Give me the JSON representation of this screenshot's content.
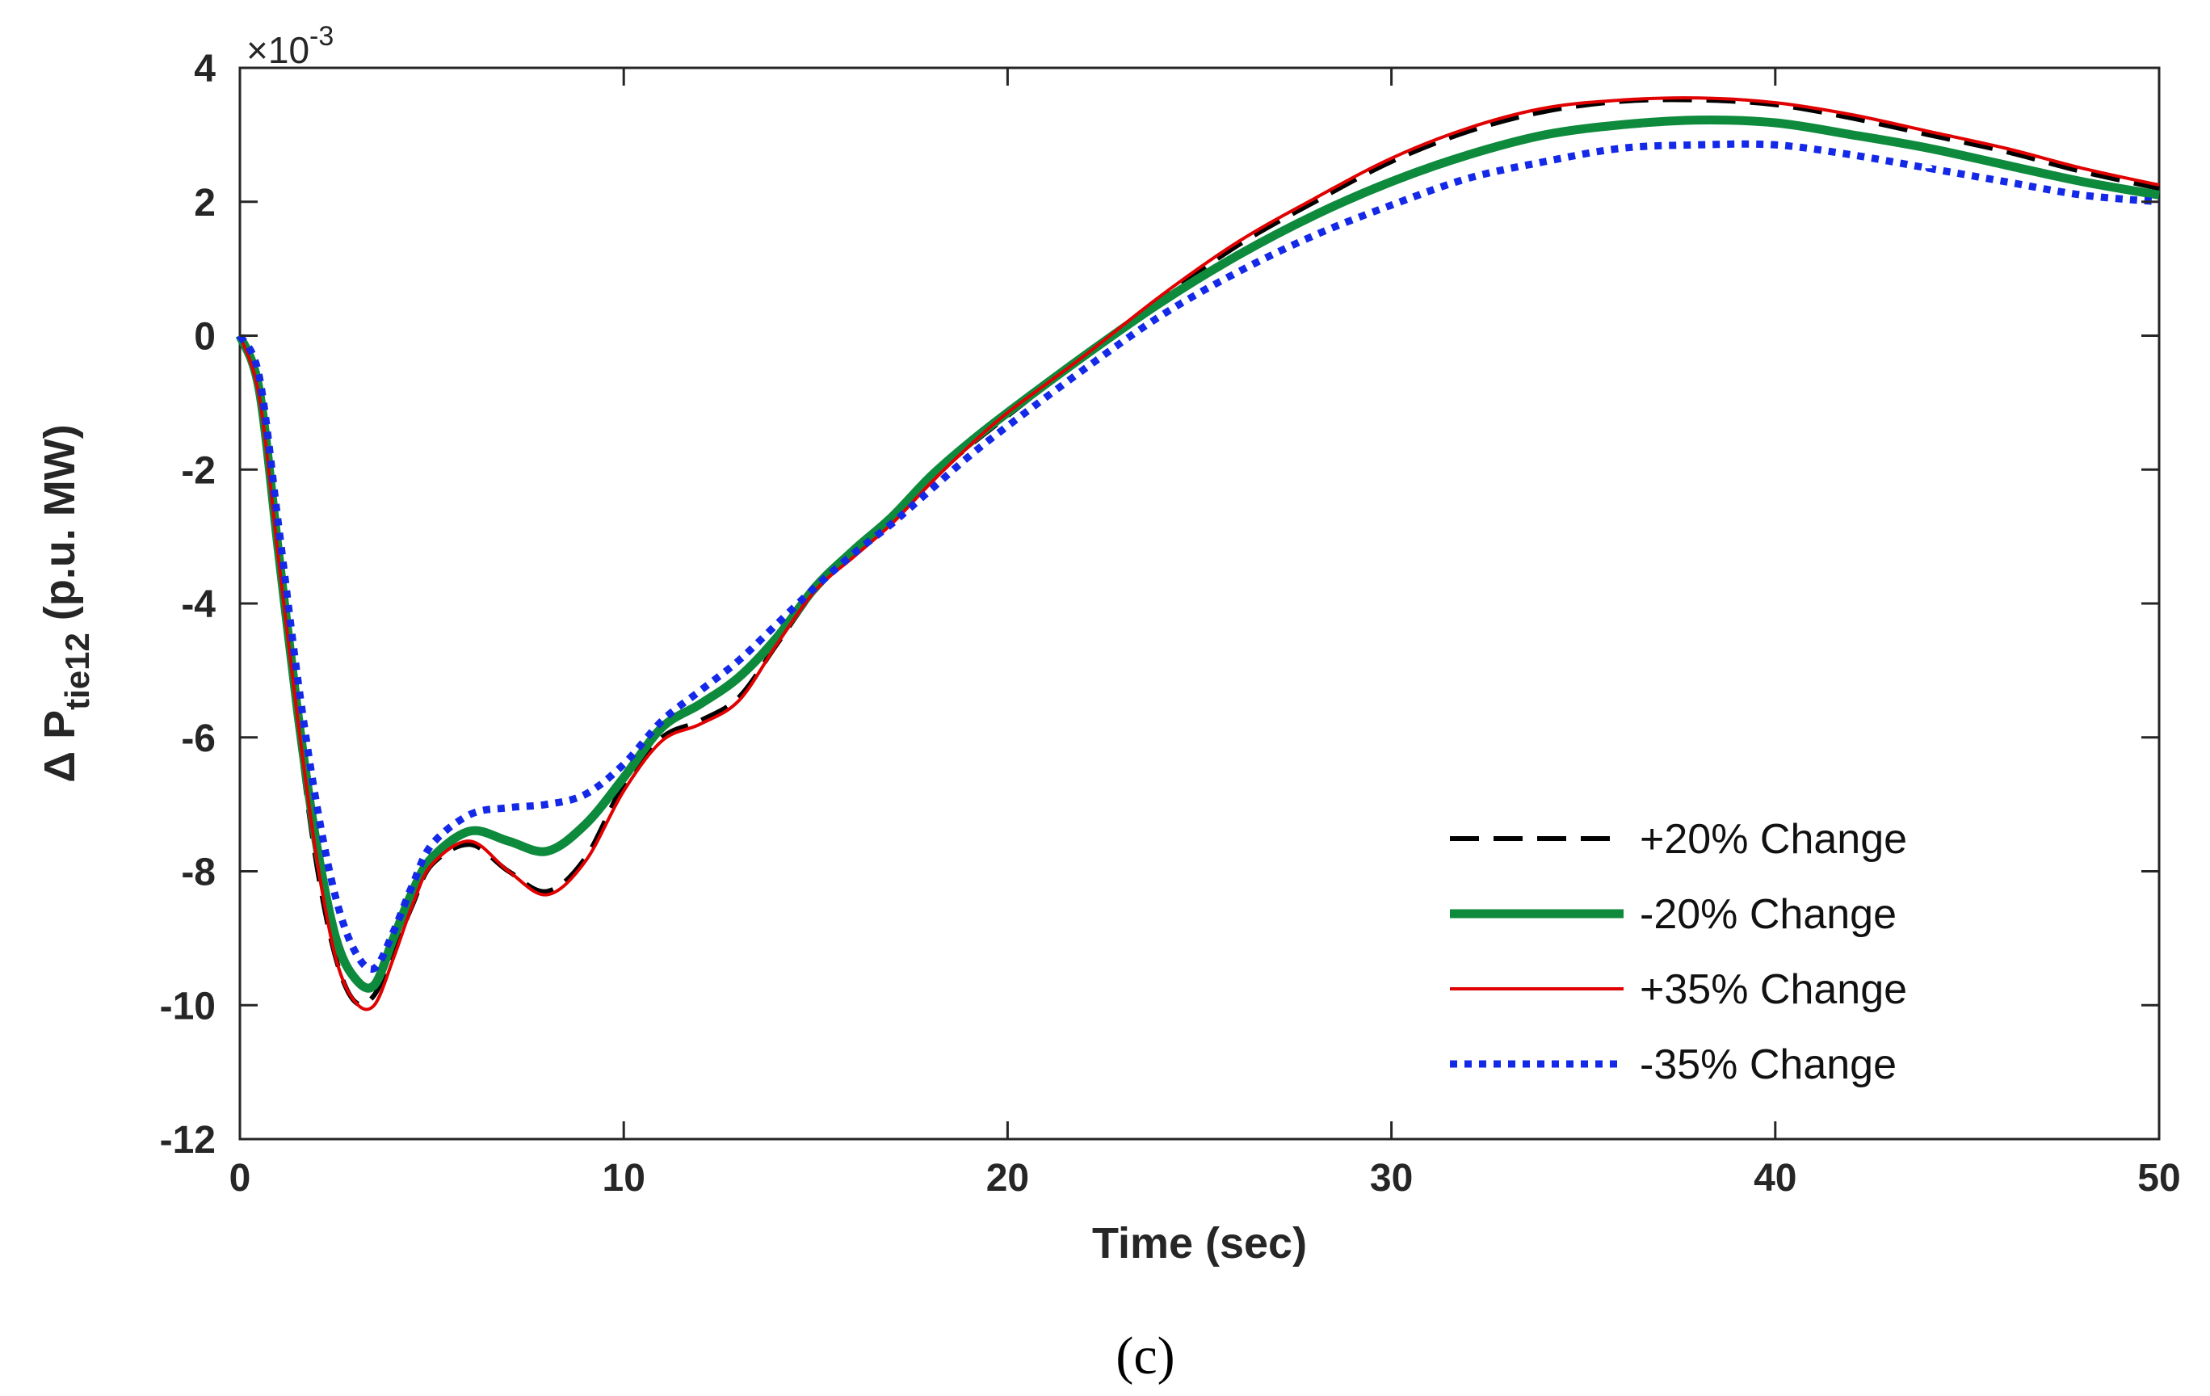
{
  "chart_data": {
    "type": "line",
    "title": "",
    "xlabel": "Time (sec)",
    "ylabel": {
      "prefix": "Δ P",
      "subscript": "tie12",
      "suffix": " (p.u. MW)"
    },
    "y_multiplier": {
      "base": "×10",
      "exponent": "-3"
    },
    "xlim": [
      0,
      50
    ],
    "ylim": [
      -12,
      4
    ],
    "x_ticks": [
      0,
      10,
      20,
      30,
      40,
      50
    ],
    "y_ticks": [
      4,
      2,
      0,
      -2,
      -4,
      -6,
      -8,
      -10,
      -12
    ],
    "grid": false,
    "legend_position": "lower-right",
    "series": [
      {
        "name": "+20% Change",
        "color": "#000000",
        "style": "dashed",
        "x": [
          0,
          0.5,
          1,
          1.5,
          2,
          2.5,
          3,
          3.5,
          4,
          4.5,
          5,
          6,
          7,
          8,
          9,
          10,
          11,
          12,
          13,
          14,
          15,
          16,
          17,
          18,
          19,
          20,
          22,
          24,
          26,
          28,
          30,
          32,
          34,
          36,
          38,
          40,
          42,
          44,
          46,
          48,
          50
        ],
        "values": [
          0,
          -0.9,
          -3.4,
          -5.8,
          -7.9,
          -9.3,
          -9.95,
          -9.85,
          -9.2,
          -8.5,
          -7.9,
          -7.6,
          -8.0,
          -8.3,
          -7.8,
          -6.7,
          -6.0,
          -5.75,
          -5.4,
          -4.6,
          -3.8,
          -3.25,
          -2.75,
          -2.15,
          -1.65,
          -1.2,
          -0.3,
          0.55,
          1.35,
          2.0,
          2.6,
          3.05,
          3.35,
          3.5,
          3.52,
          3.45,
          3.25,
          3.0,
          2.75,
          2.45,
          2.2
        ]
      },
      {
        "name": "-20% Change",
        "color": "#0e8a3c",
        "style": "solid-thick",
        "x": [
          0,
          0.5,
          1,
          1.5,
          2,
          2.5,
          3,
          3.5,
          4,
          4.5,
          5,
          6,
          7,
          8,
          9,
          10,
          11,
          12,
          13,
          14,
          15,
          16,
          17,
          18,
          19,
          20,
          22,
          24,
          26,
          28,
          30,
          32,
          34,
          36,
          38,
          40,
          42,
          44,
          46,
          48,
          50
        ],
        "values": [
          0,
          -0.8,
          -3.2,
          -5.6,
          -7.6,
          -9.0,
          -9.6,
          -9.7,
          -9.0,
          -8.3,
          -7.8,
          -7.4,
          -7.55,
          -7.7,
          -7.3,
          -6.6,
          -5.85,
          -5.5,
          -5.1,
          -4.5,
          -3.75,
          -3.2,
          -2.7,
          -2.1,
          -1.6,
          -1.15,
          -0.3,
          0.5,
          1.2,
          1.8,
          2.3,
          2.7,
          3.0,
          3.15,
          3.22,
          3.18,
          3.0,
          2.8,
          2.55,
          2.3,
          2.1
        ]
      },
      {
        "name": "+35% Change",
        "color": "#e00000",
        "style": "solid-thin",
        "x": [
          0,
          0.5,
          1,
          1.5,
          2,
          2.5,
          3,
          3.5,
          4,
          4.5,
          5,
          6,
          7,
          8,
          9,
          10,
          11,
          12,
          13,
          14,
          15,
          16,
          17,
          18,
          19,
          20,
          22,
          24,
          26,
          28,
          30,
          32,
          34,
          36,
          38,
          40,
          42,
          44,
          46,
          48,
          50
        ],
        "values": [
          0,
          -0.9,
          -3.3,
          -5.7,
          -7.8,
          -9.3,
          -9.95,
          -10.0,
          -9.3,
          -8.5,
          -7.9,
          -7.55,
          -8.0,
          -8.35,
          -7.85,
          -6.8,
          -6.05,
          -5.8,
          -5.45,
          -4.6,
          -3.8,
          -3.3,
          -2.8,
          -2.2,
          -1.65,
          -1.15,
          -0.3,
          0.6,
          1.4,
          2.05,
          2.65,
          3.1,
          3.4,
          3.52,
          3.55,
          3.48,
          3.3,
          3.05,
          2.8,
          2.5,
          2.25
        ]
      },
      {
        "name": "-35% Change",
        "color": "#1428e8",
        "style": "dotted",
        "x": [
          0,
          0.5,
          1,
          1.5,
          2,
          2.5,
          3,
          3.5,
          4,
          4.5,
          5,
          6,
          7,
          8,
          9,
          10,
          11,
          12,
          13,
          14,
          15,
          16,
          17,
          18,
          19,
          20,
          22,
          24,
          26,
          28,
          30,
          32,
          34,
          36,
          38,
          40,
          42,
          44,
          46,
          48,
          50
        ],
        "values": [
          0,
          -0.6,
          -2.8,
          -5.1,
          -7.0,
          -8.4,
          -9.2,
          -9.45,
          -8.9,
          -8.2,
          -7.6,
          -7.15,
          -7.05,
          -7.0,
          -6.85,
          -6.4,
          -5.75,
          -5.3,
          -4.85,
          -4.3,
          -3.75,
          -3.25,
          -2.8,
          -2.3,
          -1.8,
          -1.35,
          -0.5,
          0.3,
          0.95,
          1.5,
          1.95,
          2.35,
          2.6,
          2.8,
          2.85,
          2.85,
          2.7,
          2.5,
          2.3,
          2.1,
          2.0
        ]
      }
    ]
  },
  "caption": "(c)"
}
